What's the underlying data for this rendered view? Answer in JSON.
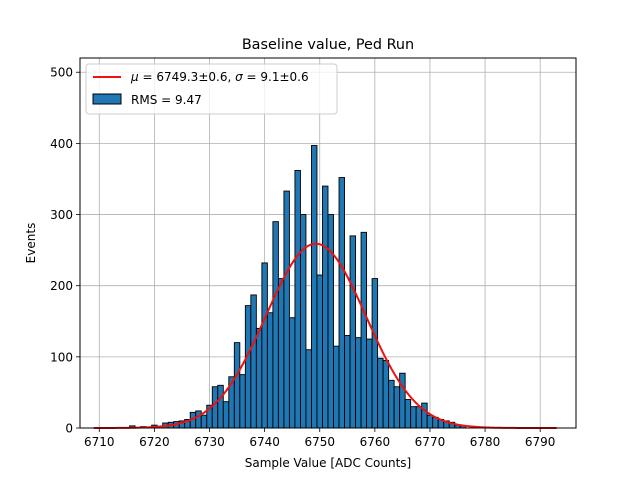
{
  "chart_data": {
    "type": "bar",
    "title": "Baseline value, Ped Run",
    "xlabel": "Sample Value [ADC Counts]",
    "ylabel": "Events",
    "xlim": [
      6706.5,
      6796.5
    ],
    "ylim": [
      0,
      520
    ],
    "xticks": [
      6710,
      6720,
      6730,
      6740,
      6750,
      6760,
      6770,
      6780,
      6790
    ],
    "yticks": [
      0,
      100,
      200,
      300,
      400,
      500
    ],
    "grid": true,
    "legend_position": "top-left",
    "bin_width": 1,
    "histogram": {
      "name": "RMS = 9.47",
      "color": "#1f77b4",
      "edgecolor": "#000000",
      "x": [
        6716,
        6718,
        6720,
        6722,
        6723,
        6724,
        6725,
        6726,
        6727,
        6728,
        6729,
        6730,
        6731,
        6732,
        6733,
        6734,
        6735,
        6736,
        6737,
        6738,
        6739,
        6740,
        6741,
        6742,
        6743,
        6744,
        6745,
        6746,
        6747,
        6748,
        6749,
        6750,
        6751,
        6752,
        6753,
        6754,
        6755,
        6756,
        6757,
        6758,
        6759,
        6760,
        6761,
        6762,
        6763,
        6764,
        6765,
        6766,
        6767,
        6768,
        6769,
        6770,
        6771,
        6772,
        6773,
        6774,
        6775,
        6776,
        6778
      ],
      "values": [
        3,
        2,
        4,
        7,
        8,
        9,
        10,
        12,
        22,
        24,
        18,
        32,
        58,
        60,
        37,
        72,
        120,
        75,
        172,
        187,
        140,
        232,
        162,
        290,
        210,
        333,
        155,
        362,
        300,
        110,
        397,
        215,
        340,
        300,
        115,
        352,
        130,
        270,
        127,
        275,
        125,
        210,
        98,
        95,
        67,
        58,
        77,
        40,
        30,
        30,
        35,
        18,
        15,
        12,
        10,
        8,
        4,
        3,
        2
      ]
    },
    "fit": {
      "name": "$\\mu = 6749.3\\pm0.6$, $\\sigma = 9.1\\pm0.6$",
      "label_parts": [
        "μ",
        " = 6749.3±0.6, ",
        "σ",
        " = 9.1±0.6"
      ],
      "color": "#ee1111",
      "type": "gaussian",
      "amplitude": 259,
      "mean": 6749.3,
      "sigma": 9.1,
      "x_range": [
        6709,
        6793
      ]
    }
  }
}
